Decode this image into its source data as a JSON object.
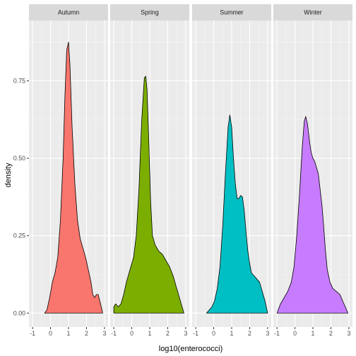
{
  "chart_data": {
    "type": "area",
    "subtype": "density",
    "xlabel": "log10(enterococci)",
    "ylabel": "density",
    "xlim": [
      -1.2,
      3.2
    ],
    "ylim": [
      -0.045,
      0.945
    ],
    "x_ticks": [
      -1,
      0,
      1,
      2,
      3
    ],
    "y_ticks": [
      0.0,
      0.25,
      0.5,
      0.75
    ],
    "y_tick_labels": [
      "0.00",
      "0.25",
      "0.50",
      "0.75"
    ],
    "grid": true,
    "legend": "none",
    "facets": [
      {
        "name": "Autumn",
        "color": "#F8766D",
        "points": [
          [
            -0.33,
            0.0
          ],
          [
            -0.2,
            0.01
          ],
          [
            -0.05,
            0.05
          ],
          [
            0.1,
            0.1
          ],
          [
            0.25,
            0.13
          ],
          [
            0.4,
            0.18
          ],
          [
            0.55,
            0.3
          ],
          [
            0.7,
            0.5
          ],
          [
            0.8,
            0.7
          ],
          [
            0.9,
            0.85
          ],
          [
            1.0,
            0.875
          ],
          [
            1.08,
            0.8
          ],
          [
            1.2,
            0.6
          ],
          [
            1.35,
            0.42
          ],
          [
            1.5,
            0.3
          ],
          [
            1.65,
            0.24
          ],
          [
            1.8,
            0.21
          ],
          [
            1.95,
            0.18
          ],
          [
            2.1,
            0.14
          ],
          [
            2.25,
            0.1
          ],
          [
            2.35,
            0.06
          ],
          [
            2.45,
            0.05
          ],
          [
            2.55,
            0.06
          ],
          [
            2.65,
            0.06
          ],
          [
            2.78,
            0.03
          ],
          [
            2.9,
            0.0
          ]
        ]
      },
      {
        "name": "Spring",
        "color": "#7CAE00",
        "points": [
          [
            -1.0,
            0.02
          ],
          [
            -0.9,
            0.03
          ],
          [
            -0.75,
            0.02
          ],
          [
            -0.6,
            0.03
          ],
          [
            -0.45,
            0.06
          ],
          [
            -0.3,
            0.1
          ],
          [
            -0.1,
            0.14
          ],
          [
            0.1,
            0.18
          ],
          [
            0.25,
            0.25
          ],
          [
            0.4,
            0.4
          ],
          [
            0.55,
            0.62
          ],
          [
            0.7,
            0.76
          ],
          [
            0.78,
            0.765
          ],
          [
            0.85,
            0.72
          ],
          [
            0.95,
            0.55
          ],
          [
            1.05,
            0.36
          ],
          [
            1.15,
            0.25
          ],
          [
            1.3,
            0.22
          ],
          [
            1.5,
            0.2
          ],
          [
            1.7,
            0.19
          ],
          [
            1.9,
            0.17
          ],
          [
            2.1,
            0.15
          ],
          [
            2.3,
            0.12
          ],
          [
            2.5,
            0.08
          ],
          [
            2.65,
            0.05
          ],
          [
            2.8,
            0.02
          ],
          [
            2.9,
            0.0
          ]
        ]
      },
      {
        "name": "Summer",
        "color": "#00BFC4",
        "points": [
          [
            -0.4,
            0.0
          ],
          [
            -0.25,
            0.01
          ],
          [
            -0.1,
            0.02
          ],
          [
            0.05,
            0.04
          ],
          [
            0.2,
            0.08
          ],
          [
            0.35,
            0.15
          ],
          [
            0.5,
            0.28
          ],
          [
            0.65,
            0.45
          ],
          [
            0.8,
            0.6
          ],
          [
            0.9,
            0.64
          ],
          [
            1.0,
            0.6
          ],
          [
            1.1,
            0.5
          ],
          [
            1.2,
            0.42
          ],
          [
            1.3,
            0.37
          ],
          [
            1.4,
            0.37
          ],
          [
            1.5,
            0.38
          ],
          [
            1.6,
            0.375
          ],
          [
            1.7,
            0.33
          ],
          [
            1.8,
            0.26
          ],
          [
            1.9,
            0.2
          ],
          [
            2.0,
            0.16
          ],
          [
            2.1,
            0.13
          ],
          [
            2.25,
            0.12
          ],
          [
            2.4,
            0.11
          ],
          [
            2.55,
            0.1
          ],
          [
            2.7,
            0.07
          ],
          [
            2.85,
            0.04
          ],
          [
            3.0,
            0.0
          ]
        ]
      },
      {
        "name": "Winter",
        "color": "#C77CFF",
        "points": [
          [
            -1.0,
            0.0
          ],
          [
            -0.8,
            0.03
          ],
          [
            -0.6,
            0.05
          ],
          [
            -0.4,
            0.07
          ],
          [
            -0.2,
            0.1
          ],
          [
            -0.05,
            0.15
          ],
          [
            0.1,
            0.25
          ],
          [
            0.25,
            0.38
          ],
          [
            0.4,
            0.53
          ],
          [
            0.52,
            0.62
          ],
          [
            0.6,
            0.635
          ],
          [
            0.7,
            0.61
          ],
          [
            0.8,
            0.56
          ],
          [
            0.9,
            0.52
          ],
          [
            1.0,
            0.5
          ],
          [
            1.1,
            0.49
          ],
          [
            1.2,
            0.47
          ],
          [
            1.3,
            0.45
          ],
          [
            1.4,
            0.4
          ],
          [
            1.5,
            0.35
          ],
          [
            1.6,
            0.28
          ],
          [
            1.7,
            0.2
          ],
          [
            1.8,
            0.14
          ],
          [
            1.95,
            0.1
          ],
          [
            2.1,
            0.08
          ],
          [
            2.3,
            0.07
          ],
          [
            2.5,
            0.06
          ],
          [
            2.65,
            0.04
          ],
          [
            2.8,
            0.02
          ],
          [
            2.95,
            0.0
          ]
        ]
      }
    ]
  }
}
